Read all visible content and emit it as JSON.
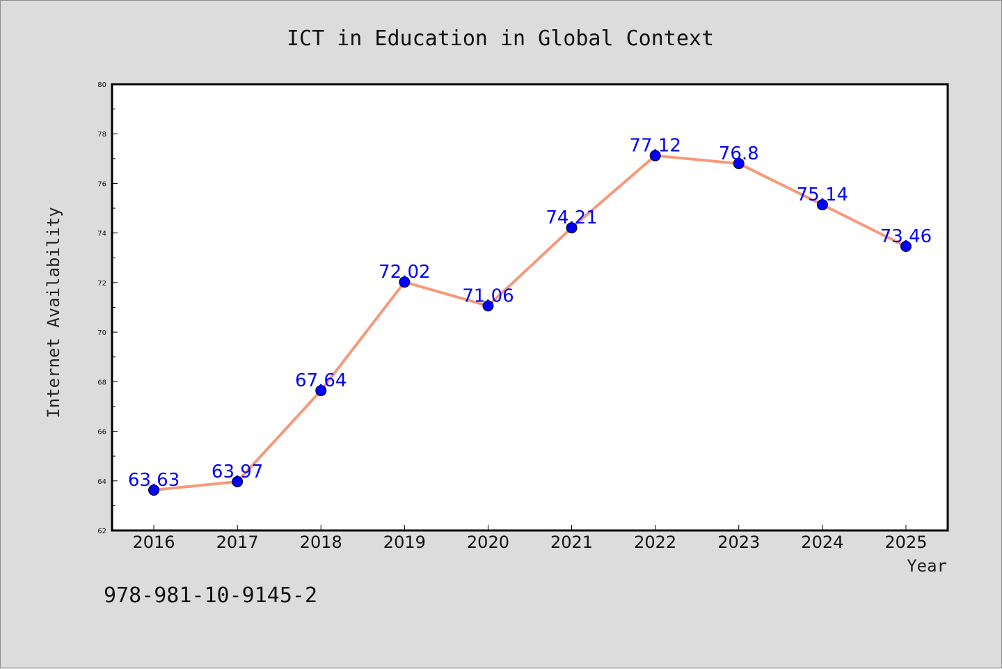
{
  "chart_data": {
    "type": "line",
    "title": "ICT in Education in Global Context",
    "xlabel": "Year",
    "ylabel": "Internet Availability",
    "categories": [
      "2016",
      "2017",
      "2018",
      "2019",
      "2020",
      "2021",
      "2022",
      "2023",
      "2024",
      "2025"
    ],
    "series": [
      {
        "values": [
          63.63,
          63.97,
          67.64,
          72.02,
          71.06,
          74.21,
          77.12,
          76.8,
          75.14,
          73.46
        ],
        "labels": [
          "63.63",
          "63.97",
          "67.64",
          "72.02",
          "71.06",
          "74.21",
          "77.12",
          "76.8",
          "75.14",
          "73.46"
        ],
        "line_color": "#f59a7a",
        "marker_color": "#0000ff"
      }
    ],
    "ylim": [
      62,
      80
    ],
    "yticks": [
      "62",
      "64",
      "66",
      "68",
      "70",
      "72",
      "74",
      "76",
      "78",
      "80"
    ],
    "grid": false,
    "legend": "none",
    "plot_background": "#ffffff",
    "figure_background": "#dcdcdc"
  },
  "footnote": "978-981-10-9145-2"
}
